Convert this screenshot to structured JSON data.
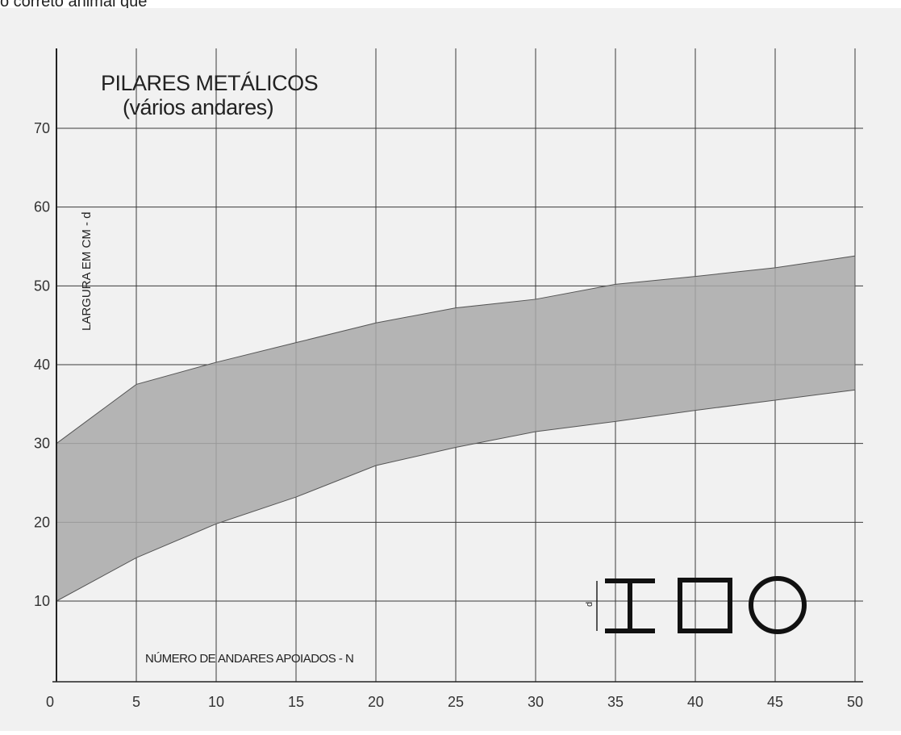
{
  "caption": "o correto animal que",
  "chart_data": {
    "type": "area",
    "title": "PILARES METÁLICOS",
    "subtitle": "(vários andares)",
    "xlabel": "NÚMERO DE ANDARES APOIADOS - N",
    "ylabel": "LARGURA  EM CM - d",
    "xlim": [
      0,
      50
    ],
    "ylim": [
      10,
      70
    ],
    "x_ticks": [
      "0",
      "5",
      "10",
      "15",
      "20",
      "25",
      "30",
      "35",
      "40",
      "45",
      "50"
    ],
    "y_ticks": [
      "10",
      "20",
      "30",
      "40",
      "50",
      "60",
      "70"
    ],
    "grid": true,
    "series": [
      {
        "role": "upper",
        "x": [
          0,
          3,
          5,
          10,
          15,
          20,
          25,
          30,
          35,
          40,
          45,
          50
        ],
        "values": [
          30,
          34.5,
          37.5,
          40.3,
          42.8,
          45.3,
          47.2,
          48.3,
          50.2,
          51.2,
          52.3,
          53.8
        ]
      },
      {
        "role": "lower",
        "x": [
          0,
          5,
          10,
          15,
          20,
          25,
          30,
          35,
          40,
          45,
          50
        ],
        "values": [
          10,
          15.5,
          19.8,
          23.2,
          27.2,
          29.5,
          31.5,
          32.8,
          34.2,
          35.5,
          36.8
        ]
      }
    ],
    "band_color": "#a9a9a9",
    "section_symbols": {
      "dimension_label": "d",
      "shapes": [
        "i-beam-icon",
        "square-section-icon",
        "circle-section-icon"
      ]
    }
  }
}
